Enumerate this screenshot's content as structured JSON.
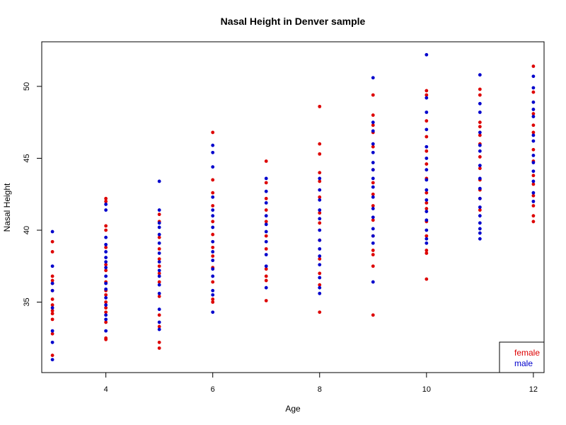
{
  "chart_data": {
    "type": "scatter",
    "title": "Nasal Height in Denver sample",
    "xlabel": "Age",
    "ylabel": "Nasal Height",
    "xlim": [
      2.8,
      12.2
    ],
    "ylim": [
      30.1,
      53.1
    ],
    "xticks": [
      4,
      6,
      8,
      10,
      12
    ],
    "yticks": [
      35,
      40,
      45,
      50
    ],
    "grid": false,
    "legend": {
      "position": "bottom-right",
      "entries": [
        "female",
        "male"
      ]
    },
    "series": [
      {
        "name": "female",
        "color": "#dd0000",
        "points": [
          [
            3,
            39.2
          ],
          [
            3,
            38.5
          ],
          [
            3,
            36.8
          ],
          [
            3,
            36.5
          ],
          [
            3,
            36.3
          ],
          [
            3,
            35.8
          ],
          [
            3,
            35.2
          ],
          [
            3,
            34.8
          ],
          [
            3,
            34.4
          ],
          [
            3,
            34.2
          ],
          [
            3,
            33.8
          ],
          [
            3,
            32.8
          ],
          [
            3,
            31.3
          ],
          [
            4,
            42.2
          ],
          [
            4,
            42.0
          ],
          [
            4,
            40.3
          ],
          [
            4,
            40.0
          ],
          [
            4,
            38.8
          ],
          [
            4,
            37.6
          ],
          [
            4,
            37.2
          ],
          [
            4,
            36.4
          ],
          [
            4,
            35.8
          ],
          [
            4,
            35.5
          ],
          [
            4,
            35.0
          ],
          [
            4,
            34.6
          ],
          [
            4,
            34.3
          ],
          [
            4,
            33.6
          ],
          [
            4,
            32.5
          ],
          [
            4,
            32.4
          ],
          [
            5,
            41.1
          ],
          [
            5,
            40.6
          ],
          [
            5,
            39.5
          ],
          [
            5,
            38.7
          ],
          [
            5,
            38.0
          ],
          [
            5,
            37.5
          ],
          [
            5,
            37.0
          ],
          [
            5,
            36.4
          ],
          [
            5,
            35.4
          ],
          [
            5,
            34.1
          ],
          [
            5,
            33.3
          ],
          [
            5,
            32.2
          ],
          [
            5,
            31.8
          ],
          [
            6,
            46.8
          ],
          [
            6,
            43.5
          ],
          [
            6,
            42.6
          ],
          [
            6,
            41.7
          ],
          [
            6,
            40.6
          ],
          [
            6,
            39.7
          ],
          [
            6,
            38.8
          ],
          [
            6,
            38.2
          ],
          [
            6,
            37.4
          ],
          [
            6,
            36.4
          ],
          [
            6,
            35.2
          ],
          [
            6,
            35.0
          ],
          [
            7,
            44.8
          ],
          [
            7,
            43.3
          ],
          [
            7,
            42.2
          ],
          [
            7,
            41.4
          ],
          [
            7,
            40.6
          ],
          [
            7,
            39.6
          ],
          [
            7,
            38.7
          ],
          [
            7,
            37.3
          ],
          [
            7,
            36.8
          ],
          [
            7,
            36.5
          ],
          [
            7,
            35.1
          ],
          [
            8,
            48.6
          ],
          [
            8,
            46.0
          ],
          [
            8,
            45.3
          ],
          [
            8,
            44.0
          ],
          [
            8,
            43.4
          ],
          [
            8,
            42.3
          ],
          [
            8,
            41.2
          ],
          [
            8,
            40.5
          ],
          [
            8,
            39.3
          ],
          [
            8,
            38.0
          ],
          [
            8,
            37.0
          ],
          [
            8,
            36.2
          ],
          [
            8,
            34.3
          ],
          [
            9,
            49.4
          ],
          [
            9,
            48.0
          ],
          [
            9,
            47.3
          ],
          [
            9,
            46.8
          ],
          [
            9,
            45.8
          ],
          [
            9,
            44.2
          ],
          [
            9,
            43.3
          ],
          [
            9,
            42.5
          ],
          [
            9,
            41.7
          ],
          [
            9,
            40.7
          ],
          [
            9,
            39.6
          ],
          [
            9,
            38.6
          ],
          [
            9,
            38.3
          ],
          [
            9,
            37.5
          ],
          [
            9,
            34.1
          ],
          [
            10,
            49.7
          ],
          [
            10,
            49.4
          ],
          [
            10,
            47.6
          ],
          [
            10,
            46.5
          ],
          [
            10,
            45.5
          ],
          [
            10,
            44.6
          ],
          [
            10,
            43.6
          ],
          [
            10,
            42.6
          ],
          [
            10,
            41.9
          ],
          [
            10,
            41.5
          ],
          [
            10,
            40.6
          ],
          [
            10,
            39.6
          ],
          [
            10,
            38.6
          ],
          [
            10,
            38.4
          ],
          [
            10,
            36.6
          ],
          [
            11,
            49.8
          ],
          [
            11,
            49.4
          ],
          [
            11,
            47.5
          ],
          [
            11,
            47.2
          ],
          [
            11,
            46.6
          ],
          [
            11,
            46.0
          ],
          [
            11,
            45.1
          ],
          [
            11,
            44.3
          ],
          [
            11,
            43.5
          ],
          [
            11,
            42.8
          ],
          [
            11,
            42.2
          ],
          [
            11,
            41.4
          ],
          [
            12,
            51.4
          ],
          [
            12,
            49.6
          ],
          [
            12,
            48.1
          ],
          [
            12,
            47.3
          ],
          [
            12,
            46.8
          ],
          [
            12,
            45.6
          ],
          [
            12,
            44.8
          ],
          [
            12,
            43.8
          ],
          [
            12,
            43.2
          ],
          [
            12,
            42.4
          ],
          [
            12,
            41.7
          ],
          [
            12,
            41.0
          ],
          [
            12,
            40.6
          ]
        ]
      },
      {
        "name": "male",
        "color": "#0000cc",
        "points": [
          [
            3,
            39.9
          ],
          [
            3,
            37.5
          ],
          [
            3,
            36.3
          ],
          [
            3,
            35.8
          ],
          [
            3,
            34.6
          ],
          [
            3,
            33.0
          ],
          [
            3,
            32.2
          ],
          [
            3,
            31.0
          ],
          [
            4,
            41.8
          ],
          [
            4,
            41.4
          ],
          [
            4,
            39.5
          ],
          [
            4,
            39.0
          ],
          [
            4,
            38.5
          ],
          [
            4,
            38.1
          ],
          [
            4,
            37.8
          ],
          [
            4,
            37.4
          ],
          [
            4,
            36.8
          ],
          [
            4,
            36.3
          ],
          [
            4,
            35.9
          ],
          [
            4,
            35.3
          ],
          [
            4,
            34.8
          ],
          [
            4,
            34.1
          ],
          [
            4,
            33.8
          ],
          [
            4,
            33.0
          ],
          [
            5,
            43.4
          ],
          [
            5,
            41.4
          ],
          [
            5,
            40.5
          ],
          [
            5,
            40.2
          ],
          [
            5,
            39.7
          ],
          [
            5,
            39.1
          ],
          [
            5,
            38.4
          ],
          [
            5,
            37.8
          ],
          [
            5,
            37.2
          ],
          [
            5,
            36.8
          ],
          [
            5,
            36.2
          ],
          [
            5,
            35.6
          ],
          [
            5,
            34.5
          ],
          [
            5,
            33.6
          ],
          [
            5,
            33.1
          ],
          [
            6,
            45.9
          ],
          [
            6,
            45.4
          ],
          [
            6,
            44.4
          ],
          [
            6,
            42.3
          ],
          [
            6,
            41.4
          ],
          [
            6,
            41.0
          ],
          [
            6,
            40.2
          ],
          [
            6,
            39.2
          ],
          [
            6,
            38.5
          ],
          [
            6,
            37.9
          ],
          [
            6,
            37.3
          ],
          [
            6,
            36.8
          ],
          [
            6,
            35.8
          ],
          [
            6,
            35.5
          ],
          [
            6,
            34.3
          ],
          [
            7,
            43.6
          ],
          [
            7,
            42.7
          ],
          [
            7,
            41.9
          ],
          [
            7,
            41.0
          ],
          [
            7,
            40.4
          ],
          [
            7,
            39.9
          ],
          [
            7,
            39.2
          ],
          [
            7,
            38.3
          ],
          [
            7,
            37.5
          ],
          [
            7,
            36.0
          ],
          [
            8,
            43.6
          ],
          [
            8,
            42.8
          ],
          [
            8,
            42.1
          ],
          [
            8,
            41.4
          ],
          [
            8,
            40.8
          ],
          [
            8,
            40.0
          ],
          [
            8,
            39.3
          ],
          [
            8,
            38.7
          ],
          [
            8,
            38.2
          ],
          [
            8,
            37.6
          ],
          [
            8,
            36.7
          ],
          [
            8,
            36.0
          ],
          [
            8,
            35.6
          ],
          [
            9,
            50.6
          ],
          [
            9,
            47.5
          ],
          [
            9,
            46.9
          ],
          [
            9,
            46.0
          ],
          [
            9,
            45.4
          ],
          [
            9,
            44.7
          ],
          [
            9,
            44.2
          ],
          [
            9,
            43.6
          ],
          [
            9,
            43.0
          ],
          [
            9,
            42.3
          ],
          [
            9,
            41.5
          ],
          [
            9,
            40.9
          ],
          [
            9,
            40.1
          ],
          [
            9,
            39.6
          ],
          [
            9,
            39.1
          ],
          [
            9,
            36.4
          ],
          [
            10,
            52.2
          ],
          [
            10,
            49.2
          ],
          [
            10,
            48.2
          ],
          [
            10,
            47.0
          ],
          [
            10,
            45.8
          ],
          [
            10,
            45.0
          ],
          [
            10,
            44.2
          ],
          [
            10,
            43.5
          ],
          [
            10,
            42.8
          ],
          [
            10,
            42.1
          ],
          [
            10,
            41.3
          ],
          [
            10,
            40.7
          ],
          [
            10,
            40.0
          ],
          [
            10,
            39.4
          ],
          [
            10,
            39.1
          ],
          [
            11,
            50.8
          ],
          [
            11,
            48.8
          ],
          [
            11,
            48.2
          ],
          [
            11,
            46.8
          ],
          [
            11,
            45.9
          ],
          [
            11,
            45.5
          ],
          [
            11,
            44.5
          ],
          [
            11,
            43.6
          ],
          [
            11,
            42.9
          ],
          [
            11,
            42.2
          ],
          [
            11,
            41.6
          ],
          [
            11,
            41.0
          ],
          [
            11,
            40.5
          ],
          [
            11,
            40.1
          ],
          [
            11,
            39.8
          ],
          [
            11,
            39.4
          ],
          [
            12,
            50.7
          ],
          [
            12,
            49.9
          ],
          [
            12,
            48.9
          ],
          [
            12,
            48.4
          ],
          [
            12,
            47.9
          ],
          [
            12,
            46.6
          ],
          [
            12,
            46.2
          ],
          [
            12,
            45.2
          ],
          [
            12,
            44.7
          ],
          [
            12,
            44.1
          ],
          [
            12,
            43.4
          ],
          [
            12,
            42.6
          ],
          [
            12,
            42.0
          ]
        ]
      }
    ]
  }
}
